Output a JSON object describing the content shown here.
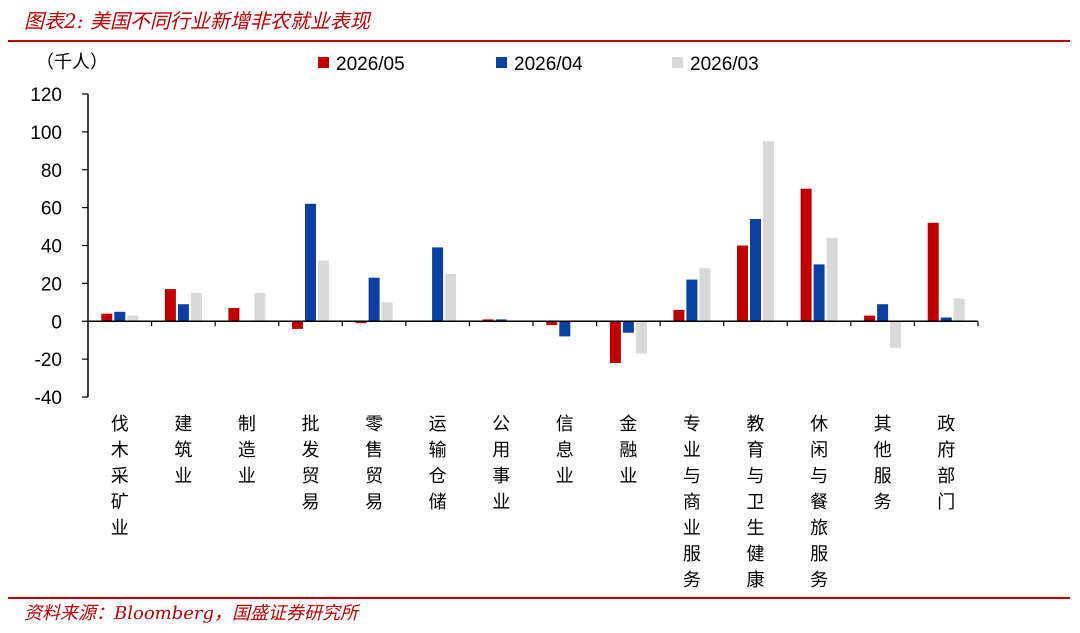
{
  "header": {
    "title": "图表2:  美国不同行业新增非农就业表现"
  },
  "footer": {
    "source": "资料来源：Bloomberg，国盛证券研究所"
  },
  "chart_data": {
    "type": "bar",
    "unit_label": "（千人）",
    "categories": [
      "伐木采矿业",
      "建筑业",
      "制造业",
      "批发贸易",
      "零售贸易",
      "运输仓储",
      "公用事业",
      "信息业",
      "金融业",
      "专业与商业服务",
      "教育与卫生健康",
      "休闲与餐旅服务",
      "其他服务",
      "政府部门"
    ],
    "series": [
      {
        "name": "2026/05",
        "color": "#c00000",
        "values": [
          4,
          17,
          7,
          -4,
          -1,
          0,
          1,
          -2,
          -22,
          6,
          40,
          70,
          3,
          52
        ]
      },
      {
        "name": "2026/04",
        "color": "#0b3fa0",
        "values": [
          5,
          9,
          0,
          62,
          23,
          39,
          1,
          -8,
          -6,
          22,
          54,
          30,
          9,
          2
        ]
      },
      {
        "name": "2026/03",
        "color": "#d9d9d9",
        "values": [
          3,
          15,
          15,
          32,
          10,
          25,
          0,
          0,
          -17,
          28,
          95,
          44,
          -14,
          12
        ]
      }
    ],
    "ylim": [
      -40,
      120
    ],
    "yticks": [
      -40,
      -20,
      0,
      20,
      40,
      60,
      80,
      100,
      120
    ],
    "legend_position": "top-center",
    "grid": false
  }
}
